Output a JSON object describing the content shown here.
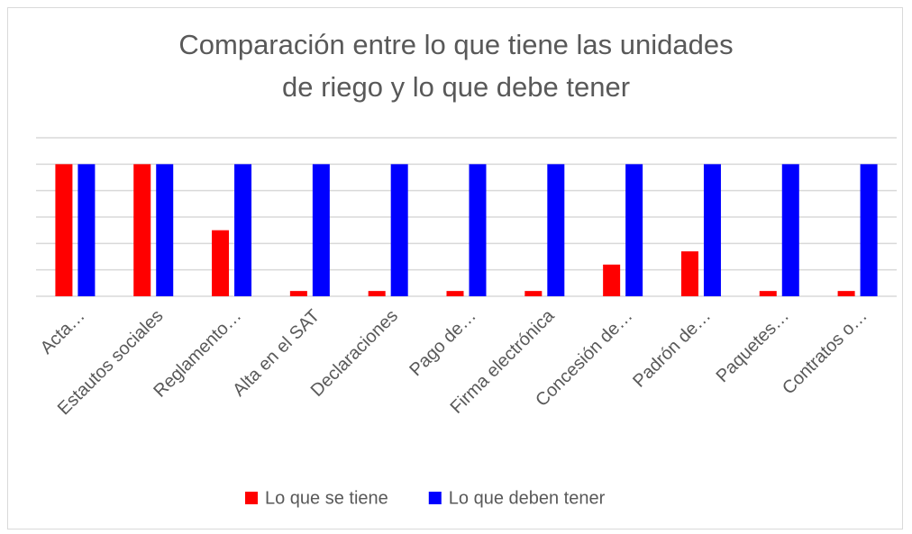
{
  "chart_data": {
    "type": "bar",
    "title": "Comparación entre lo que tiene las unidades de riego y lo que debe tener",
    "categories": [
      "Acta…",
      "Estautos sociales",
      "Reglamento…",
      "Alta en el SAT",
      "Declaraciones",
      "Pago de…",
      "Firma electrónica",
      "Concesión de…",
      "Padrón de…",
      "Paquetes…",
      "Contratos o…"
    ],
    "series": [
      {
        "name": "Lo que se tiene",
        "color": "#ff0000",
        "values": [
          5,
          5,
          2.5,
          0.2,
          0.2,
          0.2,
          0.2,
          1.2,
          1.7,
          0.2,
          0.2
        ]
      },
      {
        "name": "Lo que deben tener",
        "color": "#0000ff",
        "values": [
          5,
          5,
          5,
          5,
          5,
          5,
          5,
          5,
          5,
          5,
          5
        ]
      }
    ],
    "ylim": [
      0,
      6
    ],
    "yticks": [
      0,
      1,
      2,
      3,
      4,
      5,
      6
    ],
    "grid": true,
    "legend": "bottom"
  }
}
